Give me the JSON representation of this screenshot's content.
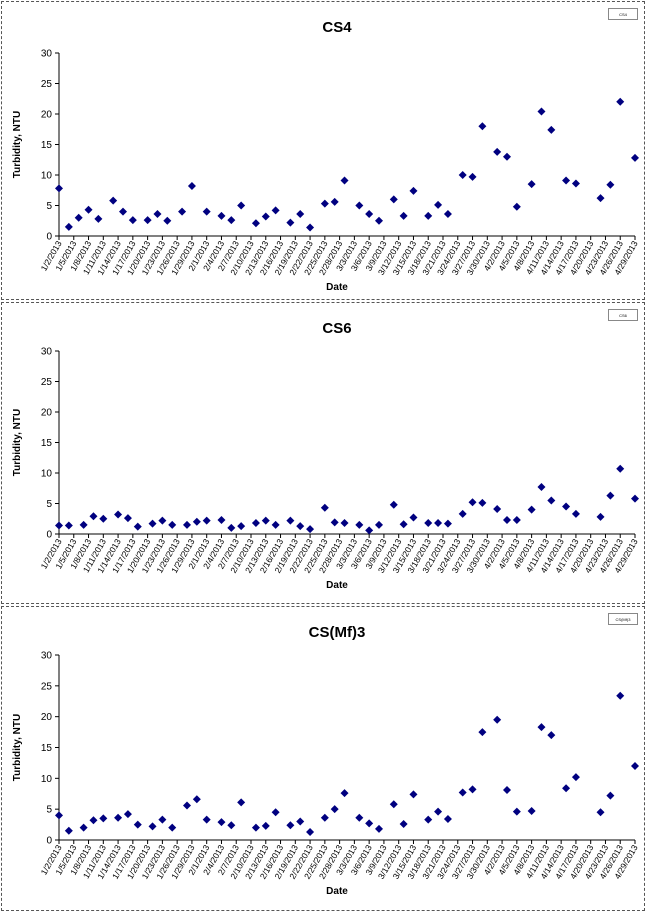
{
  "chart_data": [
    {
      "type": "scatter",
      "title": "CS4",
      "xlabel": "Date",
      "ylabel": "Turbidity, NTU",
      "ylim": [
        0,
        30
      ],
      "yticks": [
        "0",
        "5",
        "10",
        "15",
        "20",
        "25",
        "30"
      ],
      "xticks": [
        "1/2/2013",
        "1/5/2013",
        "1/8/2013",
        "1/11/2013",
        "1/14/2013",
        "1/17/2013",
        "1/20/2013",
        "1/23/2013",
        "1/26/2013",
        "1/29/2013",
        "2/1/2013",
        "2/4/2013",
        "2/7/2013",
        "2/10/2013",
        "2/13/2013",
        "2/16/2013",
        "2/19/2013",
        "2/22/2013",
        "2/25/2013",
        "2/28/2013",
        "3/3/2013",
        "3/6/2013",
        "3/9/2013",
        "3/12/2013",
        "3/15/2013",
        "3/18/2013",
        "3/21/2013",
        "3/24/2013",
        "3/27/2013",
        "3/30/2013",
        "4/2/2013",
        "4/5/2013",
        "4/8/2013",
        "4/11/2013",
        "4/14/2013",
        "4/17/2013",
        "4/20/2013",
        "4/23/2013",
        "4/26/2013",
        "4/29/2013"
      ],
      "legend": {
        "placement": "top-right",
        "label": "CS4"
      },
      "grid": false,
      "color": "#000080",
      "series": [
        {
          "x": [
            "1/2/2013",
            "1/4/2013",
            "1/6/2013",
            "1/8/2013",
            "1/10/2013",
            "1/13/2013",
            "1/15/2013",
            "1/17/2013",
            "1/20/2013",
            "1/22/2013",
            "1/24/2013",
            "1/27/2013",
            "1/29/2013",
            "2/1/2013",
            "2/4/2013",
            "2/6/2013",
            "2/8/2013",
            "2/11/2013",
            "2/13/2013",
            "2/15/2013",
            "2/18/2013",
            "2/20/2013",
            "2/22/2013",
            "2/25/2013",
            "2/27/2013",
            "3/1/2013",
            "3/4/2013",
            "3/6/2013",
            "3/8/2013",
            "3/11/2013",
            "3/13/2013",
            "3/15/2013",
            "3/18/2013",
            "3/20/2013",
            "3/22/2013",
            "3/25/2013",
            "3/27/2013",
            "3/29/2013",
            "4/1/2013",
            "4/3/2013",
            "4/5/2013",
            "4/8/2013",
            "4/10/2013",
            "4/12/2013",
            "4/15/2013",
            "4/17/2013",
            "4/22/2013",
            "4/24/2013",
            "4/26/2013",
            "4/29/2013"
          ],
          "y": [
            7.8,
            1.5,
            3.0,
            4.3,
            2.8,
            5.8,
            4.0,
            2.6,
            2.6,
            3.6,
            2.5,
            4.0,
            8.2,
            4.0,
            3.3,
            2.6,
            5.0,
            2.1,
            3.2,
            4.2,
            2.2,
            3.6,
            1.4,
            5.3,
            5.6,
            9.1,
            5.0,
            3.6,
            2.5,
            6.0,
            3.3,
            7.4,
            3.3,
            5.1,
            3.6,
            10.0,
            9.7,
            18.0,
            13.8,
            13.0,
            4.8,
            8.5,
            20.4,
            17.4,
            9.1,
            8.6,
            6.2,
            8.4,
            22.0,
            12.8
          ]
        }
      ]
    },
    {
      "type": "scatter",
      "title": "CS6",
      "xlabel": "Date",
      "ylabel": "Turbidity, NTU",
      "ylim": [
        0,
        30
      ],
      "yticks": [
        "0",
        "5",
        "10",
        "15",
        "20",
        "25",
        "30"
      ],
      "xticks": [
        "1/2/2013",
        "1/5/2013",
        "1/8/2013",
        "1/11/2013",
        "1/14/2013",
        "1/17/2013",
        "1/20/2013",
        "1/23/2013",
        "1/26/2013",
        "1/29/2013",
        "2/1/2013",
        "2/4/2013",
        "2/7/2013",
        "2/10/2013",
        "2/13/2013",
        "2/16/2013",
        "2/19/2013",
        "2/22/2013",
        "2/25/2013",
        "2/28/2013",
        "3/3/2013",
        "3/6/2013",
        "3/9/2013",
        "3/12/2013",
        "3/15/2013",
        "3/18/2013",
        "3/21/2013",
        "3/24/2013",
        "3/27/2013",
        "3/30/2013",
        "4/2/2013",
        "4/5/2013",
        "4/8/2013",
        "4/11/2013",
        "4/14/2013",
        "4/17/2013",
        "4/20/2013",
        "4/23/2013",
        "4/26/2013",
        "4/29/2013"
      ],
      "legend": {
        "placement": "top-right",
        "label": "CS6"
      },
      "grid": false,
      "color": "#000080",
      "series": [
        {
          "x": [
            "1/2/2013",
            "1/4/2013",
            "1/7/2013",
            "1/9/2013",
            "1/11/2013",
            "1/14/2013",
            "1/16/2013",
            "1/18/2013",
            "1/21/2013",
            "1/23/2013",
            "1/25/2013",
            "1/28/2013",
            "1/30/2013",
            "2/1/2013",
            "2/4/2013",
            "2/6/2013",
            "2/8/2013",
            "2/11/2013",
            "2/13/2013",
            "2/15/2013",
            "2/18/2013",
            "2/20/2013",
            "2/22/2013",
            "2/25/2013",
            "2/27/2013",
            "3/1/2013",
            "3/4/2013",
            "3/6/2013",
            "3/8/2013",
            "3/11/2013",
            "3/13/2013",
            "3/15/2013",
            "3/18/2013",
            "3/20/2013",
            "3/22/2013",
            "3/25/2013",
            "3/27/2013",
            "3/29/2013",
            "4/1/2013",
            "4/3/2013",
            "4/5/2013",
            "4/8/2013",
            "4/10/2013",
            "4/12/2013",
            "4/15/2013",
            "4/17/2013",
            "4/22/2013",
            "4/24/2013",
            "4/26/2013",
            "4/29/2013"
          ],
          "y": [
            1.4,
            1.4,
            1.5,
            2.9,
            2.5,
            3.2,
            2.6,
            1.2,
            1.7,
            2.2,
            1.5,
            1.5,
            2.0,
            2.2,
            2.3,
            1.0,
            1.3,
            1.8,
            2.2,
            1.5,
            2.2,
            1.3,
            0.8,
            4.3,
            1.9,
            1.8,
            1.5,
            0.6,
            1.5,
            4.8,
            1.6,
            2.7,
            1.8,
            1.8,
            1.7,
            3.3,
            5.2,
            5.1,
            4.1,
            2.3,
            2.3,
            4.0,
            7.7,
            5.5,
            4.5,
            3.3,
            2.8,
            6.3,
            10.7,
            5.8
          ]
        }
      ]
    },
    {
      "type": "scatter",
      "title": "CS(Mf)3",
      "xlabel": "Date",
      "ylabel": "Turbidity, NTU",
      "ylim": [
        0,
        30
      ],
      "yticks": [
        "0",
        "5",
        "10",
        "15",
        "20",
        "25",
        "30"
      ],
      "xticks": [
        "1/2/2013",
        "1/5/2013",
        "1/8/2013",
        "1/11/2013",
        "1/14/2013",
        "1/17/2013",
        "1/20/2013",
        "1/23/2013",
        "1/26/2013",
        "1/29/2013",
        "2/1/2013",
        "2/4/2013",
        "2/7/2013",
        "2/10/2013",
        "2/13/2013",
        "2/16/2013",
        "2/19/2013",
        "2/22/2013",
        "2/25/2013",
        "2/28/2013",
        "3/3/2013",
        "3/6/2013",
        "3/9/2013",
        "3/12/2013",
        "3/15/2013",
        "3/18/2013",
        "3/21/2013",
        "3/24/2013",
        "3/27/2013",
        "3/30/2013",
        "4/2/2013",
        "4/5/2013",
        "4/8/2013",
        "4/11/2013",
        "4/14/2013",
        "4/17/2013",
        "4/20/2013",
        "4/23/2013",
        "4/26/2013",
        "4/29/2013"
      ],
      "legend": {
        "placement": "top-right",
        "label": "CS(Mf)3"
      },
      "grid": false,
      "color": "#000080",
      "series": [
        {
          "x": [
            "1/2/2013",
            "1/4/2013",
            "1/7/2013",
            "1/9/2013",
            "1/11/2013",
            "1/14/2013",
            "1/16/2013",
            "1/18/2013",
            "1/21/2013",
            "1/23/2013",
            "1/25/2013",
            "1/28/2013",
            "1/30/2013",
            "2/1/2013",
            "2/4/2013",
            "2/6/2013",
            "2/8/2013",
            "2/11/2013",
            "2/13/2013",
            "2/15/2013",
            "2/18/2013",
            "2/20/2013",
            "2/22/2013",
            "2/25/2013",
            "2/27/2013",
            "3/1/2013",
            "3/4/2013",
            "3/6/2013",
            "3/8/2013",
            "3/11/2013",
            "3/13/2013",
            "3/15/2013",
            "3/18/2013",
            "3/20/2013",
            "3/22/2013",
            "3/25/2013",
            "3/27/2013",
            "3/29/2013",
            "4/1/2013",
            "4/3/2013",
            "4/5/2013",
            "4/8/2013",
            "4/10/2013",
            "4/12/2013",
            "4/15/2013",
            "4/17/2013",
            "4/22/2013",
            "4/24/2013",
            "4/26/2013",
            "4/29/2013"
          ],
          "y": [
            4.0,
            1.5,
            2.0,
            3.2,
            3.5,
            3.6,
            4.2,
            2.5,
            2.2,
            3.3,
            2.0,
            5.6,
            6.6,
            3.3,
            2.9,
            2.4,
            6.1,
            2.0,
            2.3,
            4.5,
            2.4,
            3.0,
            1.3,
            3.6,
            5.0,
            7.6,
            3.6,
            2.7,
            1.8,
            5.8,
            2.6,
            7.4,
            3.3,
            4.6,
            3.4,
            7.7,
            8.2,
            17.5,
            19.5,
            8.1,
            4.6,
            4.7,
            18.3,
            17.0,
            8.4,
            10.2,
            4.5,
            7.2,
            23.4,
            12.0
          ]
        }
      ]
    }
  ]
}
